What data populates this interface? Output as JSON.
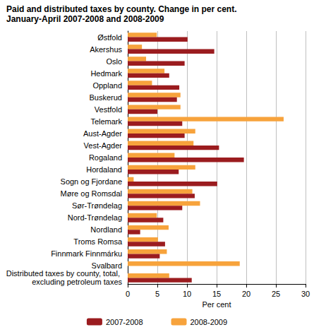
{
  "chart_data": {
    "type": "bar",
    "orientation": "horizontal",
    "title": "Paid and distributed taxes by county. Change in per cent.",
    "subtitle": "January-April 2007-2008 and 2008-2009",
    "x_label": "Per cent",
    "categories": [
      "Østfold",
      "Akershus",
      "Oslo",
      "Hedmark",
      "Oppland",
      "Buskerud",
      "Vestfold",
      "Telemark",
      "Aust-Agder",
      "Vest-Agder",
      "Rogaland",
      "Hordaland",
      "Sogn og Fjordane",
      "Møre og Romsdal",
      "Sør-Trøndelag",
      "Nord-Trøndelag",
      "Nordland",
      "Troms Romsa",
      "Finnmark Finnmárku",
      "Svalbard",
      "Distributed taxes by county, total, excluding petroleum taxes"
    ],
    "series": [
      {
        "name": "2007-2008",
        "color": "#9b1c1f",
        "values": [
          10.1,
          14.6,
          9.6,
          7.0,
          8.7,
          8.3,
          5.0,
          9.2,
          9.6,
          15.4,
          19.6,
          8.6,
          15.1,
          11.3,
          9.2,
          6.0,
          2.1,
          6.3,
          5.4,
          null,
          10.8
        ]
      },
      {
        "name": "2008-2009",
        "color": "#f7a33c",
        "values": [
          4.9,
          2.4,
          3.1,
          6.2,
          4.1,
          8.9,
          8.9,
          26.3,
          11.4,
          11.1,
          7.9,
          11.4,
          1.0,
          10.9,
          12.2,
          4.9,
          6.9,
          5.1,
          6.6,
          18.9,
          7.0
        ]
      }
    ],
    "xlim": [
      0,
      30
    ],
    "xticks": [
      0,
      5,
      10,
      15,
      20,
      25,
      30
    ],
    "grid": true,
    "legend": "bottom"
  }
}
